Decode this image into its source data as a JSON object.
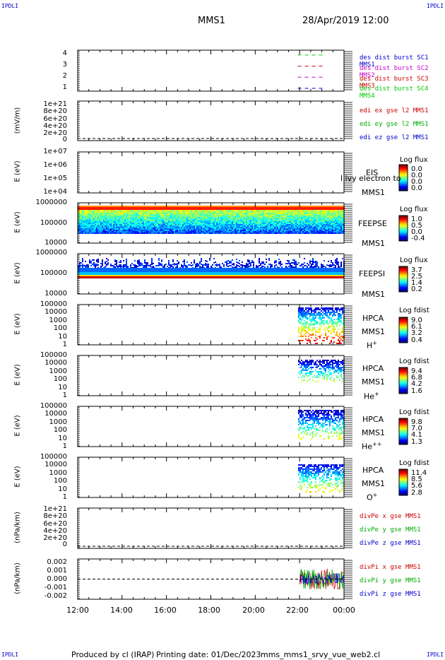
{
  "header": {
    "corner_tl": "IPDLI",
    "corner_tr": "IPDLI",
    "corner_bl": "IPDLI",
    "corner_br": "IPDLI",
    "spacecraft": "MMS1",
    "datetime": "28/Apr/2019 12:00"
  },
  "footer": {
    "produced_by": "Produced by cl (IRAP)",
    "printing_date": "Printing date: 01/Dec/2023",
    "script_name": "mms_mms1_srvy_vue_web2.cl"
  },
  "x_axis": {
    "ticks": [
      "12:00",
      "14:00",
      "16:00",
      "18:00",
      "20:00",
      "22:00",
      "00:00"
    ]
  },
  "panels": {
    "p1": {
      "yticks": [
        "4",
        "3",
        "2",
        "1"
      ],
      "legend": [
        {
          "text": "des dist burst SC1 MMS1",
          "color": "#0000cc"
        },
        {
          "text": "des dist burst SC2 MMS2",
          "color": "#cc00cc"
        },
        {
          "text": "des dist burst SC3 MMS3",
          "color": "#cc0000"
        },
        {
          "text": "des dist burst SC4 MMS4",
          "color": "#00cc00"
        }
      ]
    },
    "p2": {
      "ylabel": "(mV/m)",
      "yticks": [
        "1e+21",
        "8e+20",
        "6e+20",
        "4e+20",
        "2e+20",
        "0"
      ],
      "legend": [
        {
          "text": "edi ex gse l2 MMS1",
          "color": "#cc0000"
        },
        {
          "text": "edi ey gse l2 MMS1",
          "color": "#00aa00"
        },
        {
          "text": "edi ez gse l2 MMS1",
          "color": "#0000cc"
        }
      ]
    },
    "p3": {
      "ylabel": "E (eV)",
      "yticks": [
        "1e+07",
        "1e+06",
        "1e+05",
        "1e+04"
      ],
      "inst": "EIS",
      "overlap_text": "l ivy electron to",
      "sc": "MMS1",
      "cb_title": "Log flux",
      "cb_vals": [
        "0.0",
        "0.0",
        "0.0",
        "0.0"
      ]
    },
    "p4": {
      "ylabel": "E (eV)",
      "yticks": [
        "1000000",
        "100000",
        "10000"
      ],
      "inst": "FEEPSE",
      "sc": "MMS1",
      "cb_title": "Log flux",
      "cb_vals": [
        "1.0",
        "0.5",
        "0.0",
        "-0.4"
      ]
    },
    "p5": {
      "ylabel": "E (eV)",
      "yticks": [
        "1000000",
        "100000",
        "10000"
      ],
      "inst": "FEEPSI",
      "sc": "MMS1",
      "cb_title": "Log flux",
      "cb_vals": [
        "3.7",
        "2.5",
        "1.4",
        "0.2"
      ]
    },
    "p6": {
      "ylabel": "E (eV)",
      "yticks": [
        "100000",
        "10000",
        "1000",
        "100",
        "10",
        "1"
      ],
      "inst": "HPCA",
      "sc": "MMS1",
      "species": "H",
      "species_sup": "+",
      "cb_title": "Log fdist",
      "cb_vals": [
        "9.0",
        "6.1",
        "3.2",
        "0.4"
      ]
    },
    "p7": {
      "ylabel": "E (eV)",
      "yticks": [
        "100000",
        "10000",
        "1000",
        "100",
        "10",
        "1"
      ],
      "inst": "HPCA",
      "sc": "MMS1",
      "species": "He",
      "species_sup": "+",
      "cb_title": "Log fdist",
      "cb_vals": [
        "9.4",
        "6.8",
        "4.2",
        "1.6"
      ]
    },
    "p8": {
      "ylabel": "E (eV)",
      "yticks": [
        "100000",
        "10000",
        "1000",
        "100",
        "10",
        "1"
      ],
      "inst": "HPCA",
      "sc": "MMS1",
      "species": "He",
      "species_sup": "++",
      "cb_title": "Log fdist",
      "cb_vals": [
        "9.8",
        "7.0",
        "4.1",
        "1.3"
      ]
    },
    "p9": {
      "ylabel": "E (eV)",
      "yticks": [
        "100000",
        "10000",
        "1000",
        "100",
        "10",
        "1"
      ],
      "inst": "HPCA",
      "sc": "MMS1",
      "species": "O",
      "species_sup": "+",
      "cb_title": "Log fdist",
      "cb_vals": [
        "11.4",
        "8.5",
        "5.6",
        "2.8"
      ]
    },
    "p10": {
      "ylabel": "(nPa/km)",
      "yticks": [
        "1e+21",
        "8e+20",
        "6e+20",
        "4e+20",
        "2e+20",
        "0"
      ],
      "legend": [
        {
          "text": "divPe x gse MMS1",
          "color": "#cc0000"
        },
        {
          "text": "divPe y gse MMS1",
          "color": "#00aa00"
        },
        {
          "text": "divPe z gse MMS1",
          "color": "#0000cc"
        }
      ]
    },
    "p11": {
      "ylabel": "(nPa/km)",
      "yticks": [
        "0.002",
        "0.001",
        "0.000",
        "-0.001",
        "-0.002"
      ],
      "legend": [
        {
          "text": "divPi x gse MMS1",
          "color": "#cc0000"
        },
        {
          "text": "divPi y gse MMS1",
          "color": "#00aa00"
        },
        {
          "text": "divPi z gse MMS1",
          "color": "#0000cc"
        }
      ]
    }
  },
  "chart_data": {
    "type": "heatmap",
    "x_range": [
      "12:00",
      "00:00"
    ],
    "burst_intervals": [
      {
        "sc": "MMS1",
        "level": 1,
        "start": "21:55",
        "end": "23:10"
      },
      {
        "sc": "MMS2",
        "level": 2,
        "start": "21:55",
        "end": "23:10"
      },
      {
        "sc": "MMS3",
        "level": 3,
        "start": "21:55",
        "end": "23:10"
      },
      {
        "sc": "MMS4",
        "level": 4,
        "start": "21:55",
        "end": "23:10"
      }
    ],
    "hpca_coverage_start": "21:50",
    "divpi_activity_start": "22:00",
    "divpi_ylim": [
      -0.0025,
      0.0025
    ],
    "grid": false
  }
}
